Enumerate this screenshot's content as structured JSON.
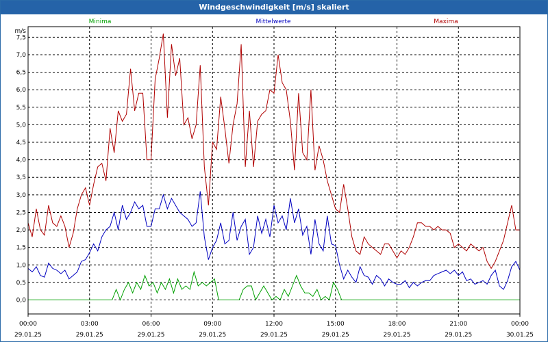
{
  "window": {
    "title": "Windgeschwindigkeit [m/s] skaliert"
  },
  "chart_data": {
    "type": "line",
    "title": "Windgeschwindigkeit [m/s] skaliert",
    "ylabel": "m/s",
    "xlabel": "",
    "ylim": [
      -0.4,
      7.8
    ],
    "xlim": [
      0,
      24
    ],
    "x_unit": "hours since 29.01.25 00:00",
    "grid": true,
    "legend_placement": "top",
    "y_ticks": [
      "0,0",
      "0,5",
      "1,0",
      "1,5",
      "2,0",
      "2,5",
      "3,0",
      "3,5",
      "4,0",
      "4,5",
      "5,0",
      "5,5",
      "6,0",
      "6,5",
      "7,0",
      "7,5"
    ],
    "x_ticks": [
      {
        "time": "00:00",
        "date": "29.01.25"
      },
      {
        "time": "03:00",
        "date": "29.01.25"
      },
      {
        "time": "06:00",
        "date": "29.01.25"
      },
      {
        "time": "09:00",
        "date": "29.01.25"
      },
      {
        "time": "12:00",
        "date": "29.01.25"
      },
      {
        "time": "15:00",
        "date": "29.01.25"
      },
      {
        "time": "18:00",
        "date": "29.01.25"
      },
      {
        "time": "21:00",
        "date": "29.01.25"
      },
      {
        "time": "00:00",
        "date": "30.01.25"
      }
    ],
    "series": [
      {
        "name": "Minima",
        "color": "#00a000",
        "x": [
          0,
          4.1,
          4.3,
          4.5,
          4.7,
          4.9,
          5.1,
          5.3,
          5.5,
          5.7,
          5.9,
          6.1,
          6.3,
          6.5,
          6.7,
          6.9,
          7.1,
          7.3,
          7.5,
          7.7,
          7.9,
          8.1,
          8.3,
          8.5,
          8.7,
          8.9,
          9.1,
          9.3,
          9.5,
          9.7,
          10.0,
          10.3,
          10.5,
          10.7,
          10.9,
          11.1,
          11.3,
          11.5,
          11.7,
          11.9,
          12.1,
          12.3,
          12.5,
          12.7,
          12.9,
          13.1,
          13.3,
          13.5,
          13.7,
          13.9,
          14.1,
          14.3,
          14.5,
          14.7,
          14.9,
          15.1,
          15.3,
          24
        ],
        "y": [
          0,
          0,
          0.3,
          0,
          0.3,
          0.5,
          0.2,
          0.5,
          0.3,
          0.7,
          0.4,
          0.5,
          0.2,
          0.5,
          0.3,
          0.6,
          0.2,
          0.6,
          0.3,
          0.4,
          0.3,
          0.8,
          0.4,
          0.5,
          0.4,
          0.5,
          0.6,
          0,
          0,
          0,
          0,
          0,
          0.3,
          0.4,
          0.4,
          0,
          0.2,
          0.4,
          0.2,
          0,
          0.1,
          0,
          0.3,
          0.1,
          0.4,
          0.7,
          0.4,
          0.2,
          0.2,
          0.1,
          0.3,
          0,
          0.1,
          0,
          0.5,
          0.3,
          0,
          0
        ]
      },
      {
        "name": "Mittelwerte",
        "color": "#0000c0",
        "x": [
          0,
          0.2,
          0.4,
          0.6,
          0.8,
          1.0,
          1.2,
          1.4,
          1.6,
          1.8,
          2.0,
          2.2,
          2.4,
          2.6,
          2.8,
          3.0,
          3.2,
          3.4,
          3.6,
          3.8,
          4.0,
          4.2,
          4.4,
          4.6,
          4.8,
          5.0,
          5.2,
          5.4,
          5.6,
          5.8,
          6.0,
          6.2,
          6.4,
          6.6,
          6.8,
          7.0,
          7.2,
          7.4,
          7.6,
          7.8,
          8.0,
          8.2,
          8.4,
          8.6,
          8.8,
          9.0,
          9.2,
          9.4,
          9.6,
          9.8,
          10.0,
          10.2,
          10.4,
          10.6,
          10.8,
          11.0,
          11.2,
          11.4,
          11.6,
          11.8,
          12.0,
          12.2,
          12.4,
          12.6,
          12.8,
          13.0,
          13.2,
          13.4,
          13.6,
          13.8,
          14.0,
          14.2,
          14.4,
          14.6,
          14.8,
          15.0,
          15.2,
          15.4,
          15.6,
          15.8,
          16.0,
          16.2,
          16.4,
          16.6,
          16.8,
          17.0,
          17.2,
          17.4,
          17.6,
          17.8,
          18.0,
          18.2,
          18.4,
          18.6,
          18.8,
          19.0,
          19.2,
          19.4,
          19.6,
          19.8,
          20.0,
          20.2,
          20.4,
          20.6,
          20.8,
          21.0,
          21.2,
          21.4,
          21.6,
          21.8,
          22.0,
          22.2,
          22.4,
          22.6,
          22.8,
          23.0,
          23.2,
          23.4,
          23.6,
          23.8,
          24.0
        ],
        "y": [
          0.9,
          0.8,
          0.95,
          0.7,
          0.65,
          1.05,
          0.9,
          0.85,
          0.75,
          0.85,
          0.6,
          0.7,
          0.8,
          1.1,
          1.15,
          1.35,
          1.6,
          1.4,
          1.8,
          2.0,
          2.1,
          2.5,
          2.0,
          2.7,
          2.3,
          2.5,
          2.8,
          2.6,
          2.7,
          2.1,
          2.1,
          2.6,
          2.6,
          3.0,
          2.6,
          2.9,
          2.7,
          2.5,
          2.4,
          2.3,
          2.1,
          2.2,
          3.1,
          1.8,
          1.15,
          1.5,
          1.7,
          2.2,
          1.6,
          1.7,
          2.5,
          1.7,
          2.1,
          2.3,
          1.3,
          1.5,
          2.4,
          1.9,
          2.3,
          1.8,
          2.7,
          2.2,
          2.4,
          2.0,
          2.9,
          2.2,
          2.6,
          1.85,
          2.1,
          1.3,
          2.3,
          1.6,
          1.4,
          2.4,
          1.6,
          1.55,
          1.0,
          0.6,
          0.85,
          0.65,
          0.5,
          0.95,
          0.7,
          0.65,
          0.45,
          0.7,
          0.6,
          0.4,
          0.6,
          0.5,
          0.45,
          0.45,
          0.55,
          0.35,
          0.5,
          0.4,
          0.5,
          0.55,
          0.55,
          0.7,
          0.75,
          0.8,
          0.85,
          0.75,
          0.85,
          0.7,
          0.8,
          0.55,
          0.6,
          0.45,
          0.5,
          0.55,
          0.45,
          0.7,
          0.85,
          0.4,
          0.3,
          0.55,
          0.95,
          1.1,
          0.85
        ]
      },
      {
        "name": "Maxima",
        "color": "#b00000",
        "x": [
          0,
          0.2,
          0.4,
          0.6,
          0.8,
          1.0,
          1.2,
          1.4,
          1.6,
          1.8,
          2.0,
          2.2,
          2.4,
          2.6,
          2.8,
          3.0,
          3.2,
          3.4,
          3.6,
          3.8,
          4.0,
          4.2,
          4.4,
          4.6,
          4.8,
          5.0,
          5.2,
          5.4,
          5.6,
          5.8,
          6.0,
          6.2,
          6.4,
          6.6,
          6.8,
          7.0,
          7.2,
          7.4,
          7.6,
          7.8,
          8.0,
          8.2,
          8.4,
          8.6,
          8.8,
          9.0,
          9.2,
          9.4,
          9.6,
          9.8,
          10.0,
          10.2,
          10.4,
          10.6,
          10.8,
          11.0,
          11.2,
          11.4,
          11.6,
          11.8,
          12.0,
          12.2,
          12.4,
          12.6,
          12.8,
          13.0,
          13.2,
          13.4,
          13.6,
          13.8,
          14.0,
          14.2,
          14.4,
          14.6,
          14.8,
          15.0,
          15.2,
          15.4,
          15.6,
          15.8,
          16.0,
          16.2,
          16.4,
          16.6,
          16.8,
          17.0,
          17.2,
          17.4,
          17.6,
          17.8,
          18.0,
          18.2,
          18.4,
          18.6,
          18.8,
          19.0,
          19.2,
          19.4,
          19.6,
          19.8,
          20.0,
          20.2,
          20.4,
          20.6,
          20.8,
          21.0,
          21.2,
          21.4,
          21.6,
          21.8,
          22.0,
          22.2,
          22.4,
          22.6,
          22.8,
          23.0,
          23.2,
          23.4,
          23.6,
          23.8,
          24.0
        ],
        "y": [
          2.2,
          1.8,
          2.6,
          2.0,
          1.85,
          2.7,
          2.2,
          2.1,
          2.4,
          2.1,
          1.5,
          1.9,
          2.6,
          3.0,
          3.2,
          2.7,
          3.3,
          3.8,
          3.9,
          3.4,
          4.9,
          4.2,
          5.4,
          5.1,
          5.3,
          6.6,
          5.4,
          5.9,
          5.9,
          4.0,
          4.0,
          6.3,
          6.9,
          7.6,
          5.2,
          7.3,
          6.4,
          6.9,
          5.0,
          5.2,
          4.6,
          5.0,
          6.7,
          3.8,
          2.7,
          4.5,
          4.3,
          5.8,
          4.9,
          3.9,
          5.0,
          5.6,
          7.3,
          3.8,
          5.4,
          3.8,
          5.1,
          5.3,
          5.4,
          6.0,
          5.9,
          7.0,
          6.2,
          6.0,
          5.1,
          3.7,
          5.9,
          4.2,
          4.0,
          6.0,
          3.7,
          4.4,
          4.0,
          3.4,
          3.0,
          2.6,
          2.5,
          3.3,
          2.6,
          1.8,
          1.4,
          1.3,
          1.8,
          1.6,
          1.5,
          1.4,
          1.3,
          1.6,
          1.6,
          1.4,
          1.2,
          1.4,
          1.3,
          1.5,
          1.8,
          2.2,
          2.2,
          2.1,
          2.1,
          2.0,
          2.1,
          2.0,
          2.0,
          1.9,
          1.5,
          1.6,
          1.5,
          1.4,
          1.6,
          1.5,
          1.4,
          1.5,
          1.1,
          0.9,
          1.1,
          1.4,
          1.7,
          2.2,
          2.7,
          2.0,
          2.0
        ]
      }
    ]
  }
}
